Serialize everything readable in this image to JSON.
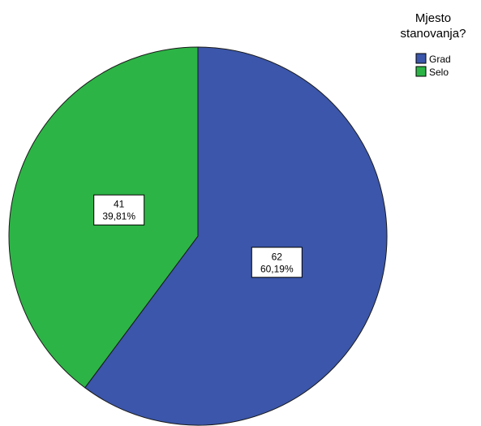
{
  "chart_data": {
    "type": "pie",
    "title": "",
    "legend": {
      "title_lines": [
        "Mjesto",
        "stanovanja?"
      ],
      "placement": "top-right"
    },
    "series": [
      {
        "name": "Mjesto stanovanja?",
        "slices": [
          {
            "label": "Grad",
            "value": 62,
            "percent_label": "60,19%",
            "color": "#3b56aa"
          },
          {
            "label": "Selo",
            "value": 41,
            "percent_label": "39,81%",
            "color": "#2db446"
          }
        ]
      }
    ]
  }
}
